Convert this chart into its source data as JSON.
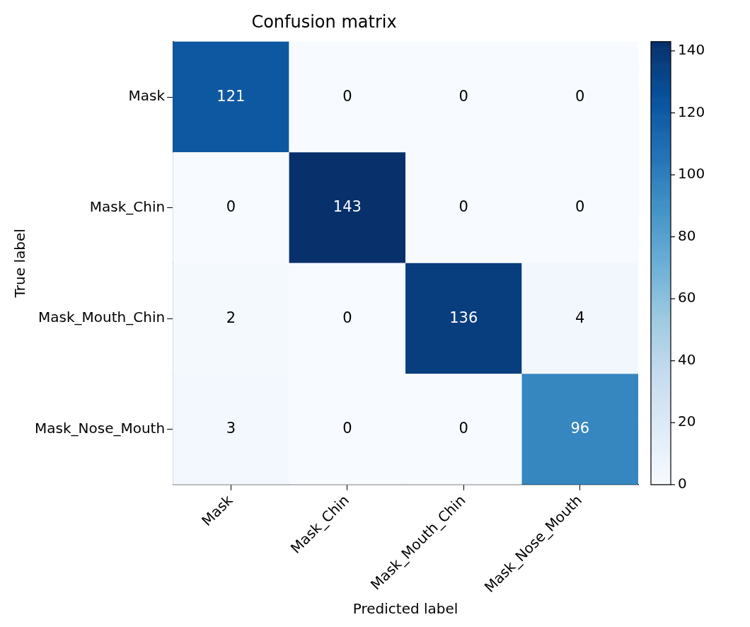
{
  "chart_data": {
    "type": "heatmap",
    "title": "Confusion matrix",
    "xlabel": "Predicted label",
    "ylabel": "True label",
    "categories": [
      "Mask",
      "Mask_Chin",
      "Mask_Mouth_Chin",
      "Mask_Nose_Mouth"
    ],
    "y_categories": [
      "Mask",
      "Mask_Chin",
      "Mask_Mouth_Chin",
      "Mask_Nose_Mouth"
    ],
    "cells": [
      [
        121,
        0,
        0,
        0
      ],
      [
        0,
        143,
        0,
        0
      ],
      [
        2,
        0,
        136,
        4
      ],
      [
        3,
        0,
        0,
        96
      ]
    ],
    "clim": [
      0,
      143
    ],
    "cticks": [
      0,
      20,
      40,
      60,
      80,
      100,
      120,
      140
    ],
    "data_labels": true,
    "grid": false,
    "legend": false
  }
}
